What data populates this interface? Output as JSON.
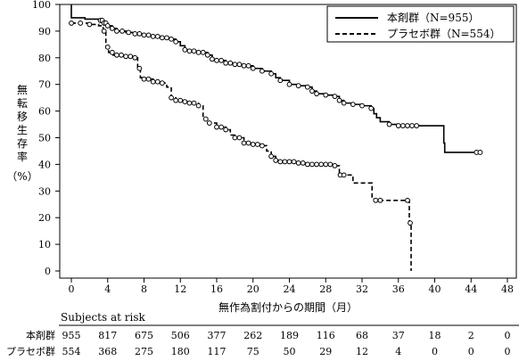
{
  "chart_data": {
    "type": "line",
    "title": "",
    "xlabel": "無作為割付からの期間（月）",
    "ylabel": [
      "無",
      "転",
      "移",
      "生",
      "存",
      "率"
    ],
    "ylabel_unit": "（%）",
    "xlim": [
      0,
      48
    ],
    "ylim": [
      0,
      100
    ],
    "xticks": [
      0,
      4,
      8,
      12,
      16,
      20,
      24,
      28,
      32,
      36,
      40,
      44,
      48
    ],
    "yticks": [
      0,
      10,
      20,
      30,
      40,
      50,
      60,
      70,
      80,
      90,
      100
    ],
    "grid": false,
    "legend_position": "top-right",
    "series": [
      {
        "name": "本剤群（N=955）",
        "style": "solid",
        "steps": [
          [
            0,
            100
          ],
          [
            0,
            95
          ],
          [
            1.5,
            94.5
          ],
          [
            3,
            94
          ],
          [
            3.6,
            93
          ],
          [
            4,
            92
          ],
          [
            4.5,
            91
          ],
          [
            5,
            90
          ],
          [
            6,
            89.5
          ],
          [
            7,
            89
          ],
          [
            8,
            88.5
          ],
          [
            9,
            88
          ],
          [
            10,
            87.5
          ],
          [
            11,
            87
          ],
          [
            11.5,
            86
          ],
          [
            12,
            84.5
          ],
          [
            12.5,
            83
          ],
          [
            13,
            82.5
          ],
          [
            14,
            82
          ],
          [
            15,
            81
          ],
          [
            15.5,
            79.5
          ],
          [
            16,
            79
          ],
          [
            17,
            78
          ],
          [
            18,
            77.5
          ],
          [
            19,
            77
          ],
          [
            20,
            76
          ],
          [
            21,
            75
          ],
          [
            22,
            74
          ],
          [
            22.5,
            72.5
          ],
          [
            23,
            71.5
          ],
          [
            24,
            70
          ],
          [
            25,
            69.5
          ],
          [
            26,
            69
          ],
          [
            26.5,
            67.5
          ],
          [
            27,
            66.5
          ],
          [
            28,
            66
          ],
          [
            29,
            65.5
          ],
          [
            29.5,
            64
          ],
          [
            30,
            63
          ],
          [
            31,
            62.5
          ],
          [
            32,
            62
          ],
          [
            33,
            61
          ],
          [
            33.3,
            59
          ],
          [
            33.6,
            57.5
          ],
          [
            34,
            56
          ],
          [
            35,
            55
          ],
          [
            36,
            54.5
          ],
          [
            37,
            54.5
          ],
          [
            38,
            54.5
          ],
          [
            39,
            54.5
          ],
          [
            40,
            54.5
          ],
          [
            41,
            48
          ],
          [
            41.1,
            44.5
          ],
          [
            43,
            44.5
          ],
          [
            45,
            44.5
          ]
        ],
        "censor_x": [
          3.2,
          3.4,
          3.6,
          3.8,
          4,
          4.5,
          5,
          5.6,
          6.3,
          7,
          7.5,
          8,
          8.5,
          9,
          9.5,
          10,
          10.5,
          11,
          11.5,
          12.5,
          13,
          13.5,
          14,
          14.5,
          15,
          15.5,
          16,
          16.5,
          17,
          17.5,
          18,
          18.5,
          19,
          19.5,
          20,
          21,
          22,
          23,
          24,
          25,
          26,
          26.5,
          27,
          28,
          29,
          29.5,
          30,
          31,
          32,
          33,
          35,
          36,
          36.5,
          37,
          37.5,
          38,
          44.6,
          45
        ]
      },
      {
        "name": "プラセボ群（N=554）",
        "style": "dashed",
        "steps": [
          [
            0,
            93
          ],
          [
            1,
            93
          ],
          [
            2,
            92.5
          ],
          [
            3,
            92
          ],
          [
            3.5,
            90
          ],
          [
            3.8,
            84
          ],
          [
            4.1,
            82
          ],
          [
            4.6,
            81
          ],
          [
            5.5,
            81
          ],
          [
            6,
            80.5
          ],
          [
            7,
            80
          ],
          [
            7.3,
            76
          ],
          [
            7.6,
            72.5
          ],
          [
            8,
            72
          ],
          [
            9,
            71
          ],
          [
            10,
            70.5
          ],
          [
            10.5,
            69
          ],
          [
            11,
            65
          ],
          [
            11.5,
            64
          ],
          [
            12.5,
            63.5
          ],
          [
            13,
            63
          ],
          [
            14,
            62
          ],
          [
            14.5,
            57
          ],
          [
            15,
            55.5
          ],
          [
            16,
            54
          ],
          [
            17,
            53
          ],
          [
            17.5,
            51
          ],
          [
            18,
            50
          ],
          [
            19,
            48
          ],
          [
            20,
            47.5
          ],
          [
            21,
            47
          ],
          [
            21.5,
            45
          ],
          [
            22,
            43
          ],
          [
            22.5,
            41.5
          ],
          [
            23,
            41
          ],
          [
            24,
            41
          ],
          [
            25,
            40.5
          ],
          [
            26,
            40
          ],
          [
            27,
            40
          ],
          [
            28,
            40
          ],
          [
            29,
            39.5
          ],
          [
            29.5,
            36
          ],
          [
            30,
            36
          ],
          [
            31,
            33
          ],
          [
            32,
            33
          ],
          [
            33,
            33
          ],
          [
            33.1,
            27
          ],
          [
            33.5,
            26.5
          ],
          [
            37,
            26.5
          ],
          [
            37.2,
            18
          ],
          [
            37.4,
            0
          ]
        ],
        "censor_x": [
          0,
          1,
          2,
          3.6,
          4,
          4.5,
          5,
          5.5,
          6,
          6.5,
          7,
          7.5,
          8,
          8.5,
          9,
          9.5,
          10,
          11,
          11.5,
          12,
          12.5,
          13,
          13.5,
          14,
          14.8,
          15.2,
          16,
          16.5,
          17,
          18,
          18.5,
          19,
          19.5,
          20,
          20.5,
          21,
          22,
          22.5,
          23,
          23.5,
          24,
          24.5,
          25,
          25.5,
          26,
          26.5,
          27,
          27.5,
          28,
          28.5,
          29,
          29.6,
          30,
          33.5,
          34,
          37,
          37.3
        ]
      }
    ],
    "risk_table": {
      "title": "Subjects at risk",
      "times": [
        0,
        4,
        8,
        12,
        16,
        20,
        24,
        28,
        32,
        36,
        40,
        44,
        48
      ],
      "rows": [
        {
          "label": "本剤群",
          "values": [
            "955",
            "817",
            "675",
            "506",
            "377",
            "262",
            "189",
            "116",
            "68",
            "37",
            "18",
            "2",
            "0"
          ]
        },
        {
          "label": "プラセボ群",
          "values": [
            "554",
            "368",
            "275",
            "180",
            "117",
            "75",
            "50",
            "29",
            "12",
            "4",
            "0",
            "0",
            "0"
          ]
        }
      ]
    }
  }
}
